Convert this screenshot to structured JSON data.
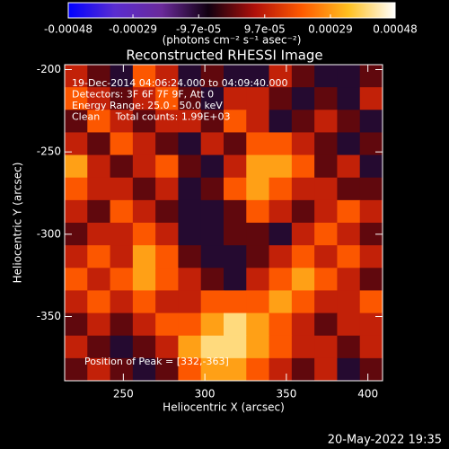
{
  "chart_data": {
    "type": "heatmap",
    "title": "Reconstructed RHESSI Image",
    "colorbar_label": "(photons cm⁻² s⁻¹ asec⁻²)",
    "clim": [
      -0.00048,
      0.00048
    ],
    "cticks": [
      -0.00048,
      -0.00029,
      {
        "value": -9.7e-05,
        "label": "-9.7e-05"
      },
      {
        "value": 9.7e-05,
        "label": "9.7e-05"
      },
      0.00029,
      0.00048
    ],
    "colormap": [
      "#0000ff",
      "#5a2dd0",
      "#6a2a9a",
      "#100010",
      "#b0100a",
      "#ff5a00",
      "#ffc020",
      "#ffffff"
    ],
    "xlabel": "Heliocentric X (arcsec)",
    "ylabel": "Heliocentric Y (arcsec)",
    "xlim": [
      214,
      409
    ],
    "xticks": [
      250,
      300,
      350,
      400
    ],
    "ylim": [
      -389,
      -197
    ],
    "yticks": [
      -200,
      -250,
      -300,
      -350
    ],
    "annotations": [
      "19-Dec-2014 04:06:24.000 to 04:09:40.000",
      "Detectors: 3F 6F 7F 9F, Att 0",
      "Energy Range: 25.0 - 50.0 keV",
      "Clean     Total counts: 1.99E+03"
    ],
    "peak_label": "Position of Peak = [332,-363]",
    "timestamp": "20-May-2022 19:35",
    "values": [
      [
        0.0001,
        0,
        -0.0001,
        0.0002,
        0.0001,
        -0.0001,
        0,
        -0.0001,
        -0.0001,
        0.0001,
        0,
        -0.0001,
        -0.0001,
        0
      ],
      [
        0.0002,
        0.0001,
        0,
        0.0001,
        0.0002,
        0,
        -0.0001,
        0.0001,
        0.0001,
        0,
        -0.0001,
        0,
        -0.0001,
        0.0001
      ],
      [
        0,
        0.0002,
        0.0001,
        0,
        0.0001,
        0.0001,
        0,
        0.0002,
        0.0001,
        -0.0001,
        0,
        0.0001,
        0,
        -0.0001
      ],
      [
        0.0001,
        0,
        0.0002,
        0.0001,
        0,
        -0.0001,
        0.0001,
        0,
        0.0002,
        0.0002,
        0.0001,
        0,
        -0.0001,
        0
      ],
      [
        0.0003,
        0.0001,
        0,
        0.0001,
        0.0002,
        0,
        -0.0001,
        0.0001,
        0.0003,
        0.0003,
        0.0002,
        0,
        0.0001,
        -0.0001
      ],
      [
        0.0002,
        0.0001,
        0.0001,
        0,
        0.0001,
        -0.0001,
        0,
        0.0002,
        0.0003,
        0.0002,
        0.0001,
        0.0001,
        0,
        0
      ],
      [
        0.0001,
        0,
        0.0002,
        0.0001,
        0,
        -0.0001,
        -0.0001,
        0,
        0.0002,
        0.0001,
        0,
        0.0001,
        0.0002,
        0.0001
      ],
      [
        0,
        0.0001,
        0.0001,
        0.0002,
        0.0001,
        -0.0001,
        -0.0001,
        0,
        0,
        -0.0001,
        0.0001,
        0.0002,
        0.0001,
        0
      ],
      [
        0.0001,
        0.0002,
        0.0001,
        0.0003,
        0.0002,
        0,
        -0.0001,
        -0.0001,
        0,
        0.0001,
        0.0002,
        0.0001,
        0.0002,
        0.0001
      ],
      [
        0.0002,
        0.0001,
        0.0002,
        0.0003,
        0.0002,
        0.0001,
        0,
        -0.0001,
        0.0001,
        0.0002,
        0.0003,
        0.0002,
        0.0001,
        0
      ],
      [
        0.0001,
        0.0002,
        0.0001,
        0.0002,
        0.0001,
        0.0001,
        0.0002,
        0.0002,
        0.0002,
        0.0003,
        0.0002,
        0.0001,
        0.0001,
        0.0002
      ],
      [
        0,
        0.0001,
        0,
        0.0001,
        0.0002,
        0.0002,
        0.0003,
        0.0004,
        0.0003,
        0.0002,
        0.0001,
        0,
        0.0001,
        0.0001
      ],
      [
        0.0001,
        0,
        -0.0001,
        0,
        0.0001,
        0.0003,
        0.0004,
        0.0004,
        0.0003,
        0.0002,
        0.0001,
        0.0001,
        0,
        0.0001
      ],
      [
        0,
        0.0001,
        0,
        -0.0001,
        0,
        0.0002,
        0.0003,
        0.0003,
        0.0002,
        0.0001,
        0,
        0.0001,
        -0.0001,
        0
      ]
    ]
  }
}
